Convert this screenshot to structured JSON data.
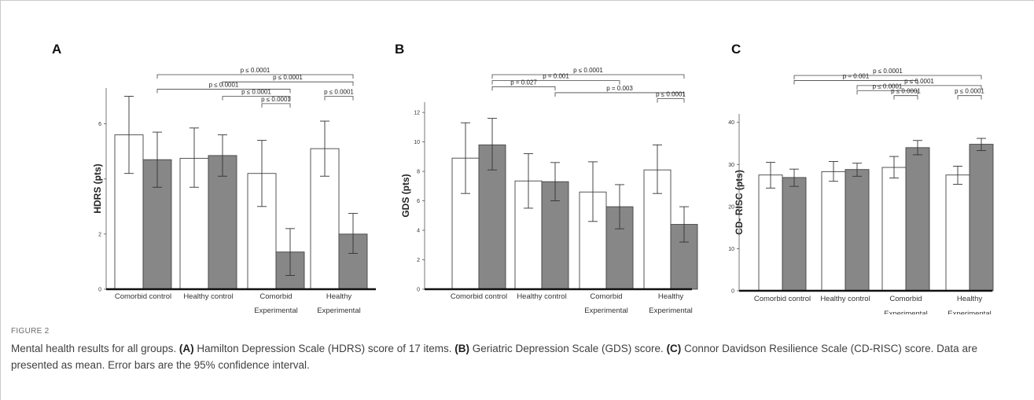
{
  "figure_label": "FIGURE 2",
  "caption": [
    {
      "text": "Mental health results for all groups. ",
      "bold": false
    },
    {
      "text": "(A)",
      "bold": true
    },
    {
      "text": " Hamilton Depression Scale (HDRS) score of 17 items. ",
      "bold": false
    },
    {
      "text": "(B)",
      "bold": true
    },
    {
      "text": " Geriatric Depression Scale (GDS) score. ",
      "bold": false
    },
    {
      "text": "(C)",
      "bold": true
    },
    {
      "text": " Connor Davidson Resilience Scale (CD-RISC) score. Data are presented as mean. Error bars are the 95% confidence interval.",
      "bold": false
    }
  ],
  "colors": {
    "open_bar": "#ffffff",
    "filled_bar": "#878787",
    "outline": "#444444"
  },
  "chart_data": [
    {
      "type": "bar",
      "panel": "A",
      "ylabel": "HDRS (pts)",
      "ylim": [
        0,
        7.3
      ],
      "yticks": [
        0,
        2,
        4,
        6
      ],
      "categories": [
        [
          "Comorbid control"
        ],
        [
          "Healthy control"
        ],
        [
          "Comorbid",
          "Experimental"
        ],
        [
          "Healthy",
          "Experimental"
        ]
      ],
      "series": [
        {
          "fill": "open",
          "values": [
            5.6,
            4.75,
            4.2,
            5.1
          ],
          "ci": [
            [
              4.2,
              7.0
            ],
            [
              3.7,
              5.85
            ],
            [
              3.0,
              5.4
            ],
            [
              4.1,
              6.1
            ]
          ]
        },
        {
          "fill": "filled",
          "values": [
            4.7,
            4.85,
            1.35,
            2.0
          ],
          "ci": [
            [
              3.7,
              5.7
            ],
            [
              4.1,
              5.6
            ],
            [
              0.5,
              2.2
            ],
            [
              1.3,
              2.75
            ]
          ]
        }
      ],
      "comparisons": [
        {
          "from": [
            0,
            1
          ],
          "to": [
            3,
            1
          ],
          "label": "p ≤ 0.0001",
          "level": 0
        },
        {
          "from": [
            1,
            1
          ],
          "to": [
            3,
            1
          ],
          "label": "p ≤ 0.0001",
          "level": 1
        },
        {
          "from": [
            0,
            1
          ],
          "to": [
            2,
            1
          ],
          "label": "p ≤ 0.0001",
          "level": 2
        },
        {
          "from": [
            1,
            1
          ],
          "to": [
            2,
            1
          ],
          "label": "p ≤ 0.0001",
          "level": 3
        },
        {
          "from": [
            3,
            0
          ],
          "to": [
            3,
            1
          ],
          "label": "p ≤ 0.0001",
          "level": 3
        },
        {
          "from": [
            2,
            0
          ],
          "to": [
            2,
            1
          ],
          "label": "p ≤ 0.0001",
          "level": 4
        }
      ]
    },
    {
      "type": "bar",
      "panel": "B",
      "ylabel": "GDS (pts)",
      "ylim": [
        0,
        12.7
      ],
      "yticks": [
        0,
        2,
        4,
        6,
        8,
        10,
        12
      ],
      "categories": [
        [
          "Comorbid control"
        ],
        [
          "Healthy control"
        ],
        [
          "Comorbid",
          "Experimental"
        ],
        [
          "Healthy",
          "Experimental"
        ]
      ],
      "series": [
        {
          "fill": "open",
          "values": [
            8.9,
            7.35,
            6.6,
            8.1
          ],
          "ci": [
            [
              6.5,
              11.3
            ],
            [
              5.5,
              9.2
            ],
            [
              4.6,
              8.65
            ],
            [
              6.5,
              9.8
            ]
          ]
        },
        {
          "fill": "filled",
          "values": [
            9.8,
            7.3,
            5.6,
            4.4
          ],
          "ci": [
            [
              8.1,
              11.6
            ],
            [
              6.0,
              8.6
            ],
            [
              4.1,
              7.1
            ],
            [
              3.2,
              5.6
            ]
          ]
        }
      ],
      "comparisons": [
        {
          "from": [
            0,
            1
          ],
          "to": [
            3,
            1
          ],
          "label": "p ≤ 0.0001",
          "level": 0
        },
        {
          "from": [
            0,
            1
          ],
          "to": [
            2,
            1
          ],
          "label": "p = 0.001",
          "level": 1
        },
        {
          "from": [
            0,
            1
          ],
          "to": [
            1,
            1
          ],
          "label": "p = 0.027",
          "level": 2
        },
        {
          "from": [
            1,
            1
          ],
          "to": [
            3,
            1
          ],
          "label": "p = 0.003",
          "level": 3
        },
        {
          "from": [
            3,
            0
          ],
          "to": [
            3,
            1
          ],
          "label": "p ≤ 0.0001",
          "level": 4
        }
      ]
    },
    {
      "type": "bar",
      "panel": "C",
      "ylabel": "CD- RISC (pts)",
      "ylim": [
        0,
        42
      ],
      "yticks": [
        0,
        10,
        20,
        30,
        40
      ],
      "categories": [
        [
          "Comorbid control"
        ],
        [
          "Healthy control"
        ],
        [
          "Comorbid",
          "Experimental"
        ],
        [
          "Healthy",
          "Experimental"
        ]
      ],
      "series": [
        {
          "fill": "open",
          "values": [
            27.5,
            28.3,
            29.3,
            27.5
          ],
          "ci": [
            [
              24.4,
              30.5
            ],
            [
              26.0,
              30.7
            ],
            [
              26.8,
              31.9
            ],
            [
              25.3,
              29.6
            ]
          ]
        },
        {
          "fill": "filled",
          "values": [
            26.9,
            28.8,
            34.0,
            34.8
          ],
          "ci": [
            [
              24.8,
              28.9
            ],
            [
              27.2,
              30.3
            ],
            [
              32.3,
              35.7
            ],
            [
              33.3,
              36.2
            ]
          ]
        }
      ],
      "comparisons": [
        {
          "from": [
            0,
            1
          ],
          "to": [
            3,
            1
          ],
          "label": "p ≤ 0.0001",
          "level": 0
        },
        {
          "from": [
            0,
            1
          ],
          "to": [
            2,
            1
          ],
          "label": "p = 0.001",
          "level": 1
        },
        {
          "from": [
            1,
            1
          ],
          "to": [
            3,
            1
          ],
          "label": "p ≤ 0.0001",
          "level": 2
        },
        {
          "from": [
            1,
            1
          ],
          "to": [
            2,
            1
          ],
          "label": "p ≤ 0.0001",
          "level": 3
        },
        {
          "from": [
            2,
            0
          ],
          "to": [
            2,
            1
          ],
          "label": "p ≤ 0.0001",
          "level": 4
        },
        {
          "from": [
            3,
            0
          ],
          "to": [
            3,
            1
          ],
          "label": "p ≤ 0.0001",
          "level": 4
        }
      ]
    }
  ]
}
